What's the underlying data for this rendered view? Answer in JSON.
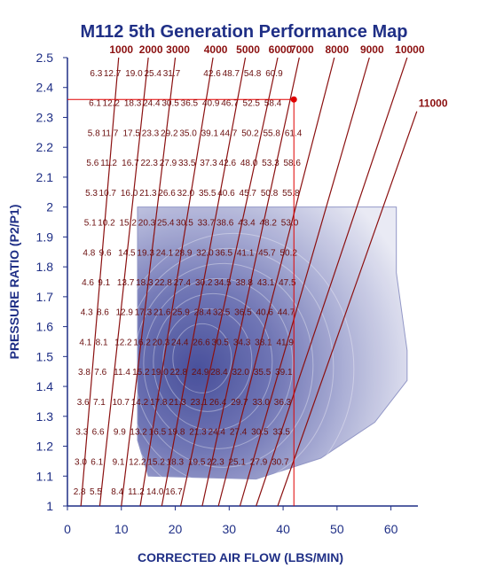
{
  "chart_data": {
    "type": "line",
    "title": "M112 5th Generation Performance Map",
    "xlabel": "CORRECTED AIR FLOW (LBS/MIN)",
    "ylabel": "PRESSURE RATIO (P2/P1)",
    "xlim": [
      0,
      65
    ],
    "ylim": [
      1,
      2.5
    ],
    "x_ticks": [
      "0",
      "10",
      "20",
      "30",
      "40",
      "50",
      "60"
    ],
    "y_ticks": [
      "1",
      "1.1",
      "1.2",
      "1.3",
      "1.4",
      "1.5",
      "1.6",
      "1.7",
      "1.8",
      "1.9",
      "2",
      "2.1",
      "2.2",
      "2.3",
      "2.4",
      "2.5"
    ],
    "colors": {
      "speed_line": "#8b1010",
      "map_light": "#e6e8f3",
      "map_dark": "#4d54a0",
      "operating_point": "#e00000",
      "text": "#1f2f86"
    },
    "efficiency_map": {
      "flow_range": [
        13,
        61
      ],
      "pr_range": [
        1.1,
        2.0
      ],
      "peak_region": {
        "x": 24,
        "y": 1.5
      }
    },
    "speed_lines": [
      {
        "name": "1000",
        "points": [
          [
            2.5,
            1.0
          ],
          [
            9.5,
            2.5
          ]
        ]
      },
      {
        "name": "2000",
        "points": [
          [
            6.0,
            1.0
          ],
          [
            15.0,
            2.5
          ]
        ]
      },
      {
        "name": "3000",
        "points": [
          [
            10.0,
            1.0
          ],
          [
            20.0,
            2.5
          ]
        ]
      },
      {
        "name": "4000",
        "points": [
          [
            13.5,
            1.0
          ],
          [
            27.0,
            2.5
          ]
        ]
      },
      {
        "name": "5000",
        "points": [
          [
            17.5,
            1.0
          ],
          [
            33.0,
            2.5
          ]
        ]
      },
      {
        "name": "6000",
        "points": [
          [
            21.0,
            1.0
          ],
          [
            39.0,
            2.5
          ]
        ]
      },
      {
        "name": "7000",
        "points": [
          [
            25.0,
            1.0
          ],
          [
            43.0,
            2.5
          ]
        ]
      },
      {
        "name": "8000",
        "points": [
          [
            28.0,
            1.0
          ],
          [
            49.5,
            2.5
          ]
        ]
      },
      {
        "name": "9000",
        "points": [
          [
            32.0,
            1.0
          ],
          [
            56.0,
            2.5
          ]
        ]
      },
      {
        "name": "10000",
        "points": [
          [
            35.0,
            1.0
          ],
          [
            63.0,
            2.5
          ]
        ]
      },
      {
        "name": "11000",
        "points": [
          [
            39.0,
            1.0
          ],
          [
            64.8,
            2.32
          ]
        ]
      }
    ],
    "operating_point": {
      "x": 42,
      "y": 2.36
    },
    "column_labels": [
      {
        "x": 5.0,
        "values": [
          "6.3",
          "6.1",
          "5.8",
          "5.6",
          "5.3",
          "5.1",
          "4.8",
          "4.6",
          "4.3",
          "4.1",
          "3.8",
          "3.6",
          "3.3",
          "3.0",
          "2.8"
        ]
      },
      {
        "x": 8.0,
        "values": [
          "12.7",
          "12.2",
          "11.7",
          "11.2",
          "10.7",
          "10.2",
          "9.6",
          "9.1",
          "8.6",
          "8.1",
          "7.6",
          "7.1",
          "6.6",
          "6.1",
          "5.5"
        ]
      },
      {
        "x": 12.0,
        "values": [
          "19.0",
          "18.3",
          "17.5",
          "16.7",
          "16.0",
          "15.2",
          "14.5",
          "13.7",
          "12.9",
          "12.2",
          "11.4",
          "10.7",
          "9.9",
          "9.1",
          "8.4"
        ]
      },
      {
        "x": 15.5,
        "values": [
          "25.4",
          "24.4",
          "23.3",
          "22.3",
          "21.3",
          "20.3",
          "19.3",
          "18.3",
          "17.3",
          "16.2",
          "15.2",
          "14.2",
          "13.2",
          "12.2",
          "11.2"
        ]
      },
      {
        "x": 19.0,
        "values": [
          "31.7",
          "30.5",
          "29.2",
          "27.9",
          "26.6",
          "25.4",
          "24.1",
          "22.8",
          "21.6",
          "20.3",
          "19.0",
          "17.8",
          "16.5",
          "15.2",
          "14.0"
        ]
      },
      {
        "x": 22.5,
        "values": [
          "",
          "36.5",
          "35.0",
          "33.5",
          "32.0",
          "30.5",
          "28.9",
          "27.4",
          "25.9",
          "24.4",
          "22.8",
          "21.3",
          "19.8",
          "18.3",
          "16.7"
        ]
      },
      {
        "x": 26.5,
        "values": [
          "42.6",
          "40.9",
          "39.1",
          "37.3",
          "35.5",
          "33.7",
          "32.0",
          "30.2",
          "28.4",
          "26.6",
          "24.9",
          "23.1",
          "21.3",
          "19.5"
        ]
      },
      {
        "x": 30.0,
        "values": [
          "48.7",
          "46.7",
          "44.7",
          "42.6",
          "40.6",
          "38.6",
          "36.5",
          "34.5",
          "32.5",
          "30.5",
          "28.4",
          "26.4",
          "24.4",
          "22.3"
        ]
      },
      {
        "x": 34.0,
        "values": [
          "54.8",
          "52.5",
          "50.2",
          "48.0",
          "45.7",
          "43.4",
          "41.1",
          "38.8",
          "36.5",
          "34.3",
          "32.0",
          "29.7",
          "27.4",
          "25.1"
        ]
      },
      {
        "x": 38.0,
        "values": [
          "60.9",
          "58.4",
          "55.8",
          "53.3",
          "50.8",
          "48.2",
          "45.7",
          "43.1",
          "40.6",
          "38.1",
          "35.5",
          "33.0",
          "30.5",
          "27.9"
        ]
      },
      {
        "x": 42.0,
        "values": [
          "",
          "",
          "61.4",
          "58.6",
          "55.8",
          "53.0",
          "50.2",
          "47.5",
          "44.7",
          "41.9",
          "39.1",
          "36.3",
          "33.5",
          "30.7"
        ]
      }
    ]
  }
}
